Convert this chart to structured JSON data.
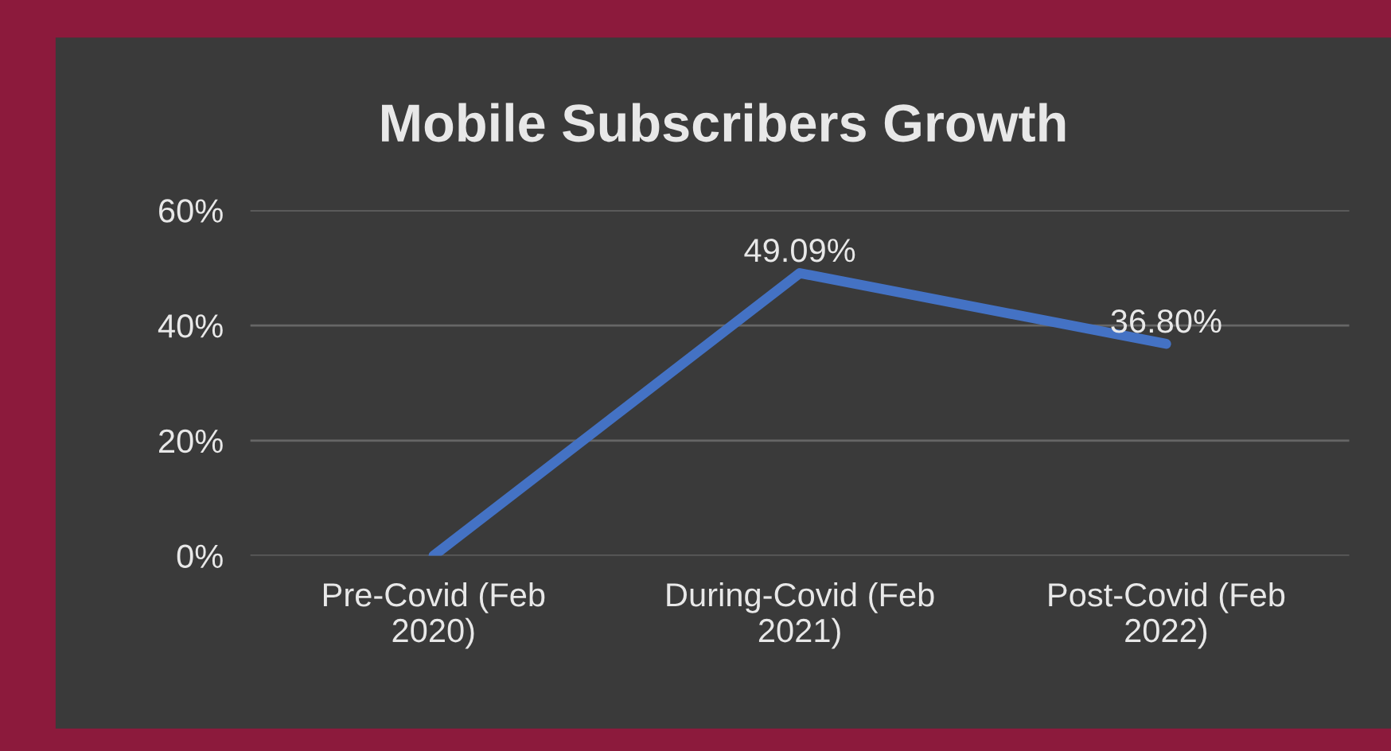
{
  "chart_data": {
    "type": "line",
    "title": "Mobile Subscribers Growth",
    "categories": [
      "Pre-Covid (Feb\n2020)",
      "During-Covid (Feb\n2021)",
      "Post-Covid (Feb\n2022)"
    ],
    "series": [
      {
        "color": "#4472c4",
        "values": [
          0,
          49.09,
          36.8
        ],
        "value_labels": [
          null,
          "49.09%",
          "36.80%"
        ]
      }
    ],
    "ylim": [
      0,
      60
    ],
    "yticks": [
      {
        "value": 0,
        "label": "0%"
      },
      {
        "value": 20,
        "label": "20%"
      },
      {
        "value": 40,
        "label": "40%"
      },
      {
        "value": 60,
        "label": "60%"
      }
    ],
    "grid": "y",
    "legend": false,
    "marker": "none",
    "line_style": "solid"
  }
}
